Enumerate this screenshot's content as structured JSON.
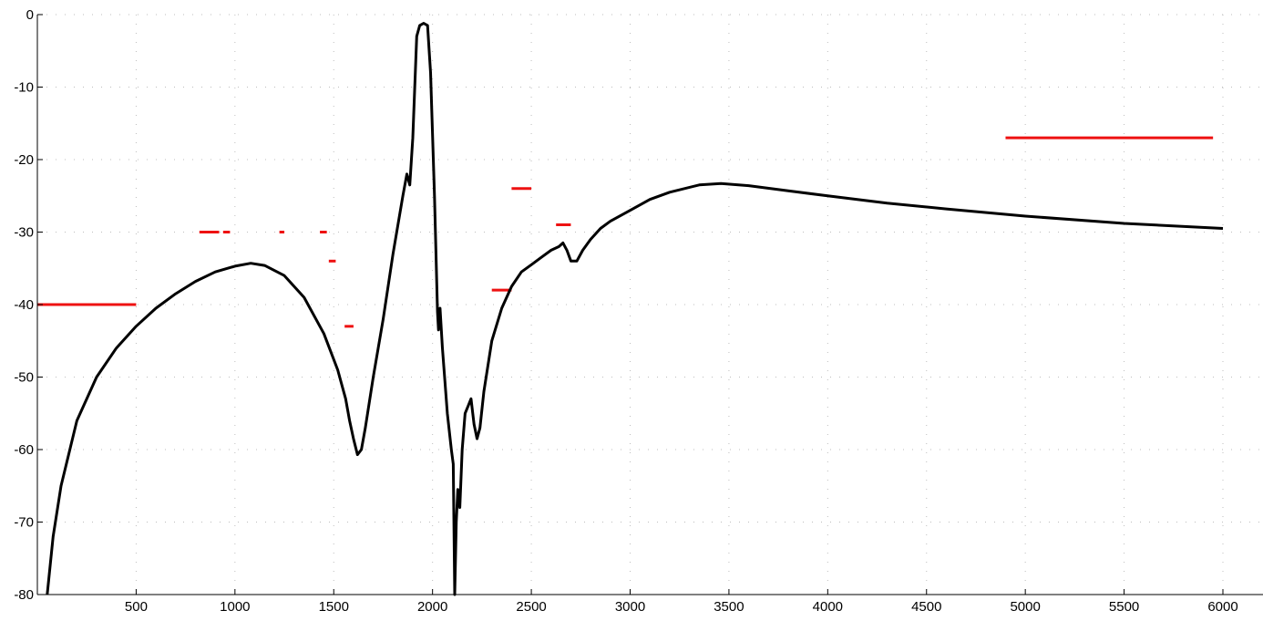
{
  "chart_data": {
    "type": "line",
    "title": "",
    "xlabel": "",
    "ylabel": "",
    "xlim": [
      0,
      6000
    ],
    "ylim": [
      -80,
      0
    ],
    "grid": true,
    "x_ticks": [
      500,
      1000,
      1500,
      2000,
      2500,
      3000,
      3500,
      4000,
      4500,
      5000,
      5500,
      6000
    ],
    "y_ticks": [
      0,
      -10,
      -20,
      -30,
      -40,
      -50,
      -60,
      -70,
      -80
    ],
    "colors": {
      "curve": "#000000",
      "limit_lines": "#ee1111",
      "grid": "#bdbdbd"
    },
    "series": [
      {
        "type": "line",
        "color": "#000000",
        "points": [
          [
            50,
            -80
          ],
          [
            80,
            -72
          ],
          [
            120,
            -65
          ],
          [
            200,
            -56
          ],
          [
            300,
            -50
          ],
          [
            400,
            -46
          ],
          [
            500,
            -43
          ],
          [
            600,
            -40.5
          ],
          [
            700,
            -38.5
          ],
          [
            800,
            -36.8
          ],
          [
            900,
            -35.5
          ],
          [
            1000,
            -34.7
          ],
          [
            1080,
            -34.3
          ],
          [
            1150,
            -34.6
          ],
          [
            1250,
            -36
          ],
          [
            1350,
            -39
          ],
          [
            1450,
            -44
          ],
          [
            1520,
            -49
          ],
          [
            1560,
            -53
          ],
          [
            1580,
            -56
          ],
          [
            1600,
            -58.5
          ],
          [
            1620,
            -60.7
          ],
          [
            1640,
            -60
          ],
          [
            1660,
            -57
          ],
          [
            1700,
            -50
          ],
          [
            1750,
            -42
          ],
          [
            1800,
            -33
          ],
          [
            1850,
            -25
          ],
          [
            1870,
            -22
          ],
          [
            1885,
            -23.5
          ],
          [
            1900,
            -17
          ],
          [
            1920,
            -3
          ],
          [
            1935,
            -1.5
          ],
          [
            1955,
            -1.2
          ],
          [
            1975,
            -1.5
          ],
          [
            1990,
            -8
          ],
          [
            2010,
            -25
          ],
          [
            2025,
            -41
          ],
          [
            2030,
            -43.5
          ],
          [
            2038,
            -40.5
          ],
          [
            2050,
            -46
          ],
          [
            2075,
            -55
          ],
          [
            2095,
            -60
          ],
          [
            2105,
            -62
          ],
          [
            2112,
            -80
          ],
          [
            2120,
            -70
          ],
          [
            2128,
            -65.5
          ],
          [
            2138,
            -68
          ],
          [
            2150,
            -60
          ],
          [
            2165,
            -55
          ],
          [
            2180,
            -54
          ],
          [
            2195,
            -53
          ],
          [
            2210,
            -56.5
          ],
          [
            2225,
            -58.5
          ],
          [
            2240,
            -57
          ],
          [
            2260,
            -52
          ],
          [
            2300,
            -45
          ],
          [
            2350,
            -40.5
          ],
          [
            2400,
            -37.5
          ],
          [
            2450,
            -35.5
          ],
          [
            2500,
            -34.5
          ],
          [
            2550,
            -33.5
          ],
          [
            2600,
            -32.5
          ],
          [
            2640,
            -32
          ],
          [
            2660,
            -31.5
          ],
          [
            2680,
            -32.5
          ],
          [
            2700,
            -34
          ],
          [
            2730,
            -34
          ],
          [
            2760,
            -32.5
          ],
          [
            2800,
            -31
          ],
          [
            2850,
            -29.5
          ],
          [
            2900,
            -28.5
          ],
          [
            3000,
            -27
          ],
          [
            3100,
            -25.5
          ],
          [
            3200,
            -24.5
          ],
          [
            3350,
            -23.5
          ],
          [
            3460,
            -23.3
          ],
          [
            3600,
            -23.6
          ],
          [
            3800,
            -24.3
          ],
          [
            4000,
            -25
          ],
          [
            4300,
            -26
          ],
          [
            4600,
            -26.8
          ],
          [
            5000,
            -27.8
          ],
          [
            5500,
            -28.8
          ],
          [
            6000,
            -29.5
          ]
        ]
      }
    ],
    "limit_lines": [
      {
        "x": [
          0,
          500
        ],
        "y": -40
      },
      {
        "x": [
          820,
          920
        ],
        "y": -30
      },
      {
        "x": [
          940,
          975
        ],
        "y": -30
      },
      {
        "x": [
          1225,
          1250
        ],
        "y": -30
      },
      {
        "x": [
          1430,
          1465
        ],
        "y": -30
      },
      {
        "x": [
          1475,
          1510
        ],
        "y": -34
      },
      {
        "x": [
          1555,
          1600
        ],
        "y": -43
      },
      {
        "x": [
          2300,
          2400
        ],
        "y": -38
      },
      {
        "x": [
          2400,
          2500
        ],
        "y": -24
      },
      {
        "x": [
          2625,
          2700
        ],
        "y": -29
      },
      {
        "x": [
          4900,
          5950
        ],
        "y": -17
      }
    ]
  }
}
